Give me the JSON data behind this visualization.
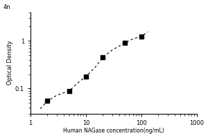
{
  "title": "",
  "xlabel": "Human NAGase concentration(ng/mL)",
  "ylabel": "Optical Density",
  "x_data": [
    2,
    5,
    10,
    20,
    50,
    100
  ],
  "y_data": [
    0.055,
    0.09,
    0.18,
    0.45,
    0.9,
    1.25
  ],
  "x_curve": [
    1.5,
    2,
    3,
    5,
    7,
    10,
    15,
    20,
    30,
    50,
    70,
    100,
    130
  ],
  "y_curve": [
    0.038,
    0.055,
    0.073,
    0.09,
    0.13,
    0.18,
    0.29,
    0.45,
    0.65,
    0.9,
    1.1,
    1.25,
    1.55
  ],
  "xlim": [
    1,
    1000
  ],
  "ylim": [
    0.03,
    4
  ],
  "marker_color": "black",
  "line_color": "black",
  "marker": "s",
  "marker_size": 5,
  "line_style": "--",
  "background_color": "#ffffff",
  "xlabel_fontsize": 5.5,
  "ylabel_fontsize": 6,
  "tick_fontsize": 6,
  "ytick_labels": [
    "0.1",
    "1"
  ],
  "ytick_vals": [
    0.1,
    1
  ],
  "xtick_vals": [
    1,
    10,
    100,
    1000
  ],
  "xtick_labels": [
    "1",
    "10",
    "100",
    "1000"
  ],
  "top_ylabel": "4n"
}
